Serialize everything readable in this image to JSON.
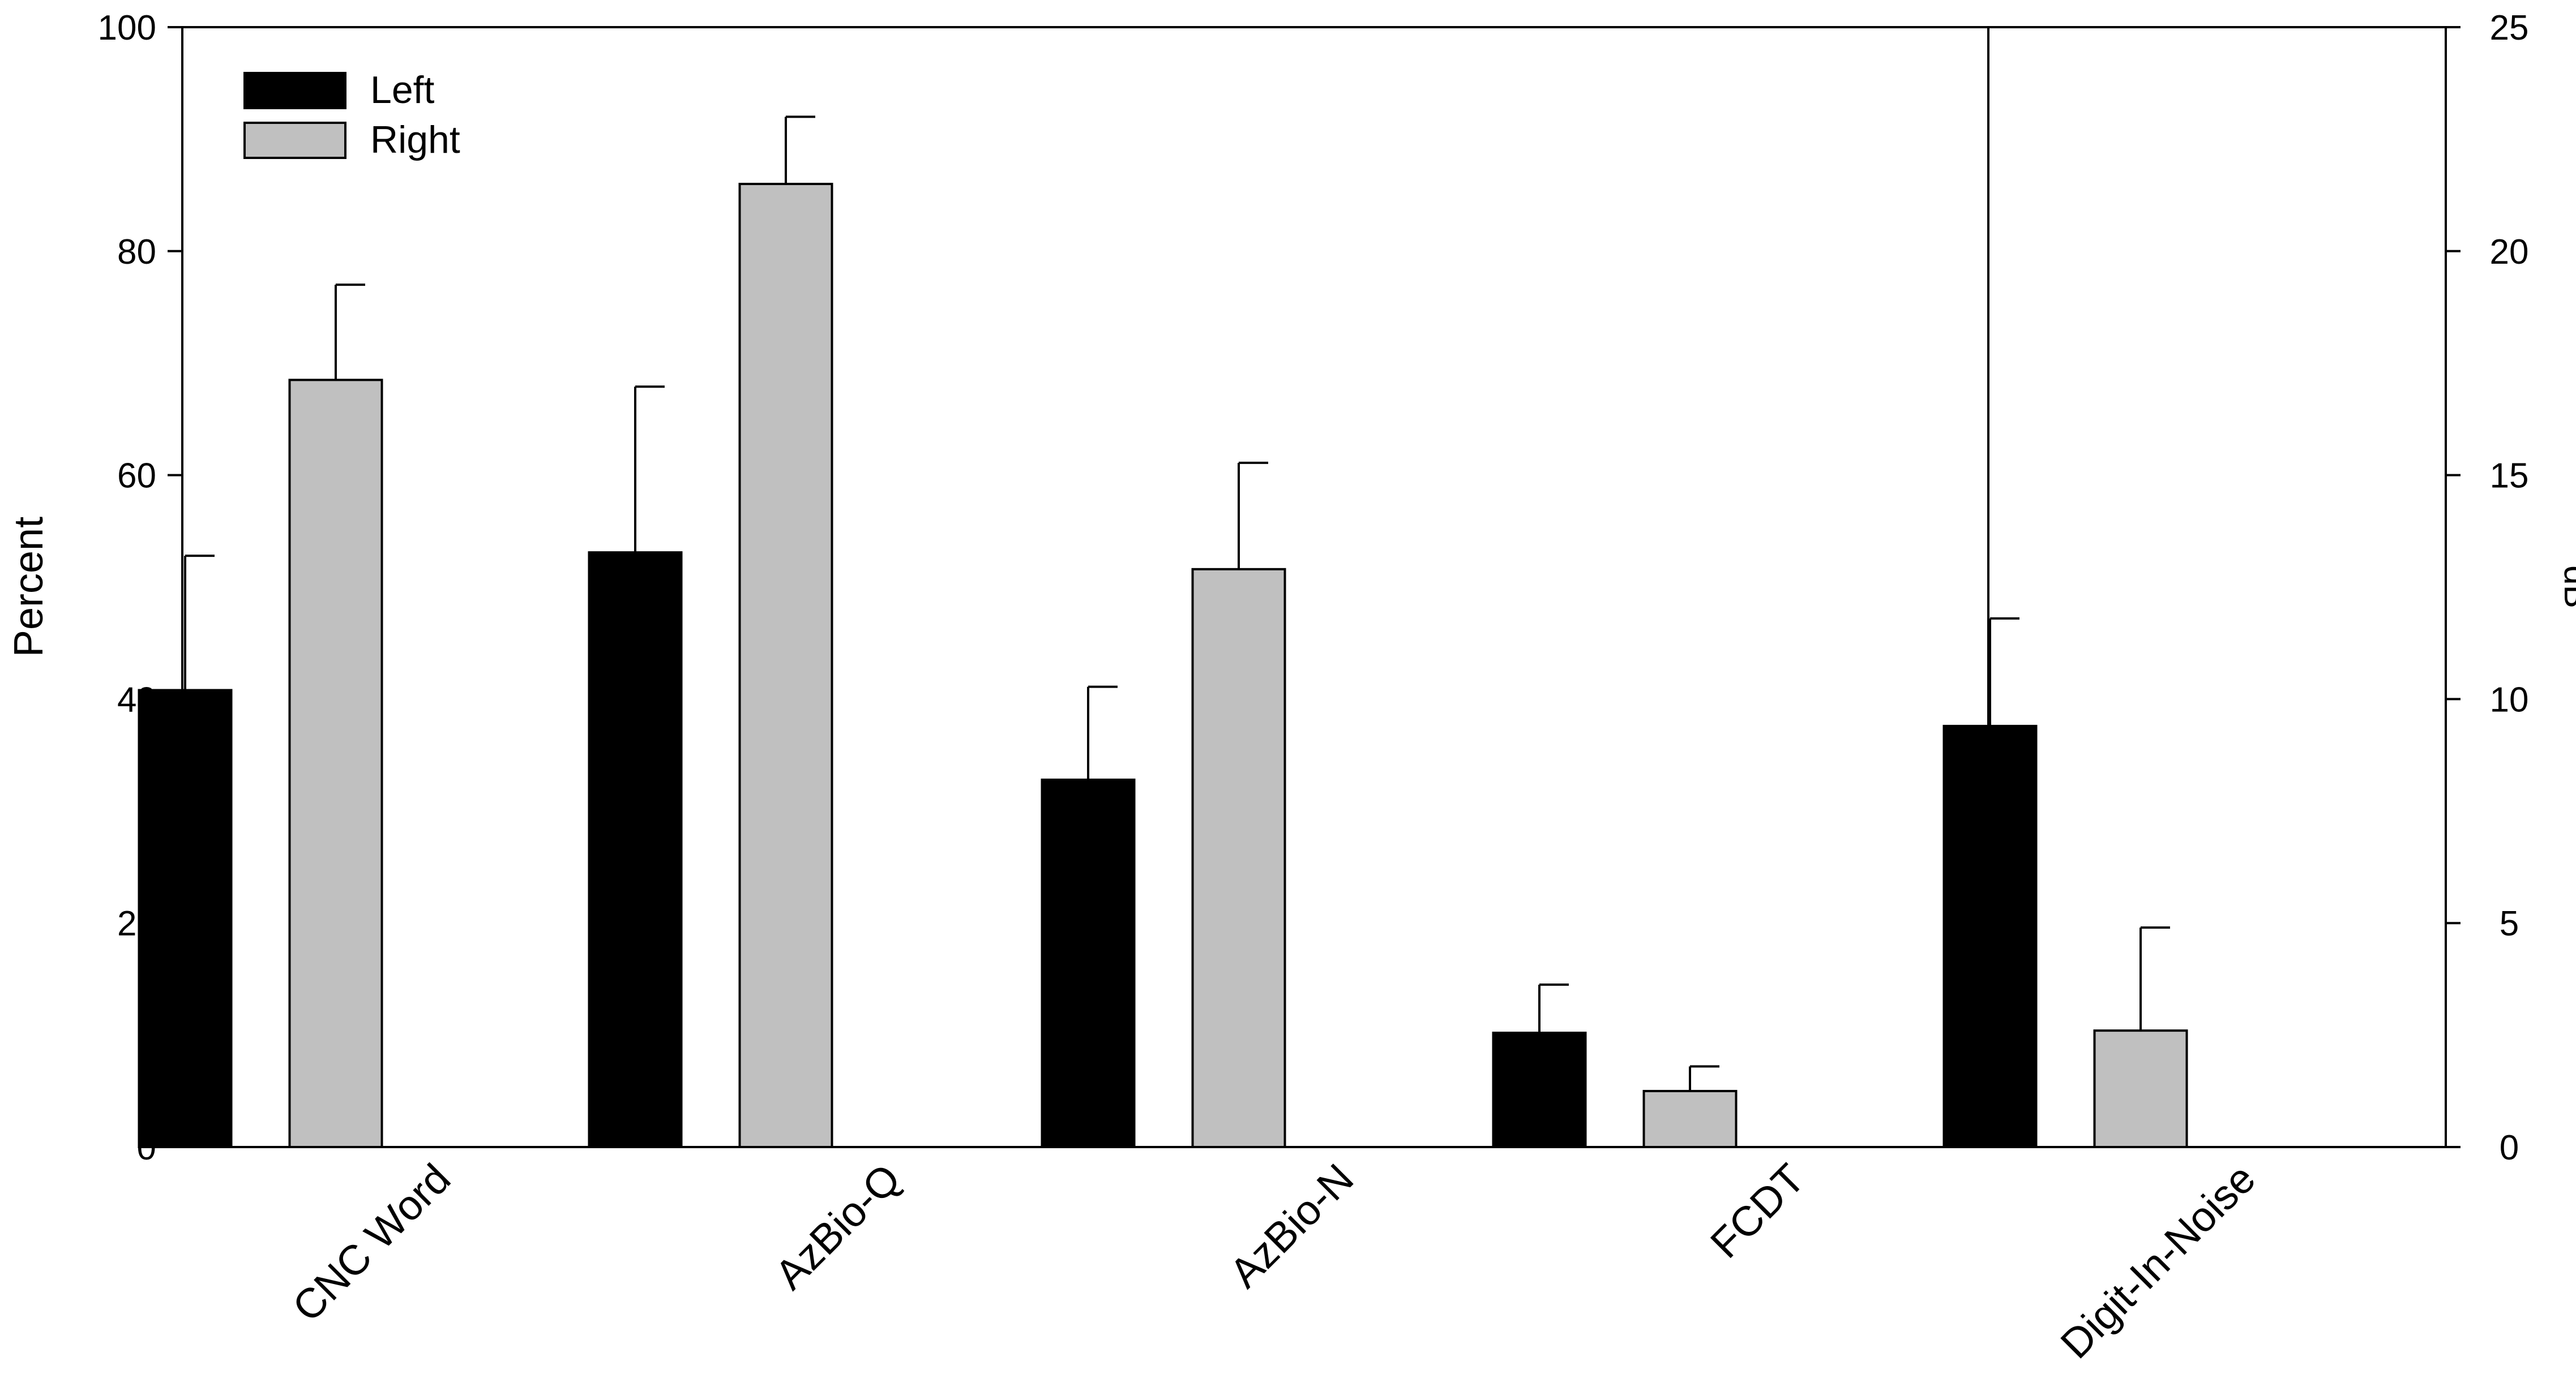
{
  "chart_data": {
    "type": "bar",
    "categories": [
      "CNC Word",
      "AzBio-Q",
      "AzBio-N",
      "FCDT",
      "Digit-In-Noise"
    ],
    "series": [
      {
        "name": "Left",
        "color": "#000000",
        "values": [
          40.8,
          53.1,
          32.8,
          10.2,
          9.4
        ],
        "error": [
          12.0,
          14.8,
          8.3,
          4.3,
          2.4
        ]
      },
      {
        "name": "Right",
        "color": "#c0c0c0",
        "values": [
          68.5,
          86.0,
          51.6,
          5.0,
          2.6
        ],
        "error": [
          8.5,
          6.0,
          9.5,
          2.2,
          2.3
        ]
      }
    ],
    "value_units": [
      "Percent",
      "Percent",
      "Percent",
      "Percent",
      "dB"
    ],
    "left_axis": {
      "label": "Percent",
      "ylim": [
        0,
        100
      ],
      "ticks": [
        "0",
        "20",
        "40",
        "60",
        "80",
        "100"
      ]
    },
    "right_axis": {
      "label": "dB",
      "ylim": [
        0,
        25
      ],
      "ticks": [
        "0",
        "5",
        "10",
        "15",
        "20",
        "25"
      ]
    },
    "legend": {
      "placement": "top-left",
      "entries": [
        "Left",
        "Right"
      ]
    },
    "grid": false,
    "panel_divider_after_category": "FCDT",
    "title": "",
    "xlabel": ""
  }
}
